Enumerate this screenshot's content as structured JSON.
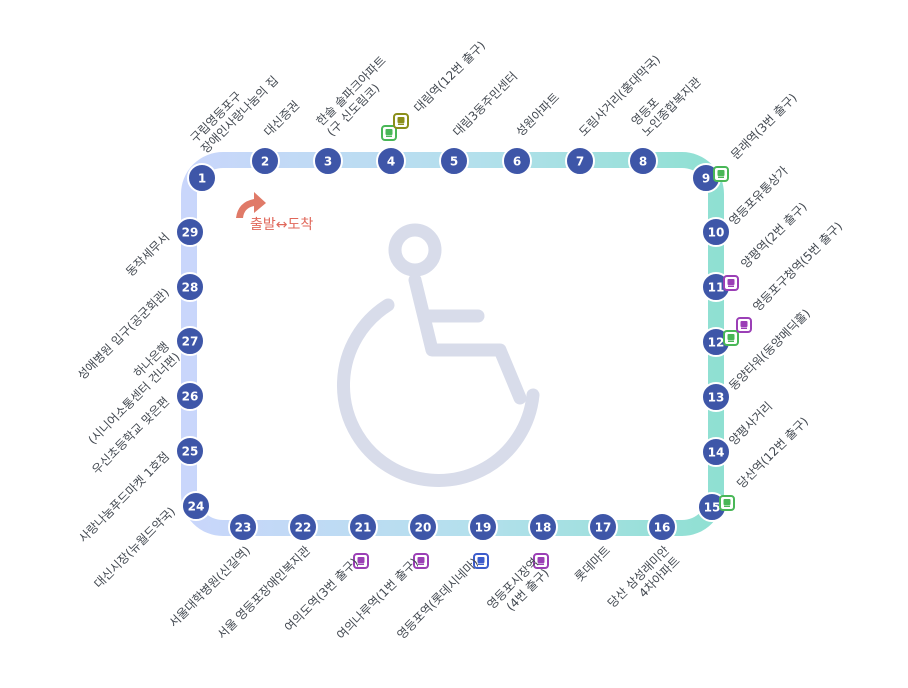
{
  "route_colors": {
    "start": "#c9d6fb",
    "mid": "#b3e0ec",
    "end": "#8fe0d2",
    "stop": "#3e56a8",
    "icon": "#d8dcea",
    "accent": "#e07a68"
  },
  "start_label": "출발↔도착",
  "center_icon": "wheelchair-icon",
  "stops": [
    {
      "num": "1",
      "lines": [
        "구립영등포구",
        "장애인사랑나눔의 집"
      ],
      "badges": []
    },
    {
      "num": "2",
      "lines": [
        "대신증권"
      ],
      "badges": []
    },
    {
      "num": "3",
      "lines": [
        "한솔 솔파크아파트",
        "(구 신도림코)"
      ],
      "badges": []
    },
    {
      "num": "4",
      "lines": [
        "대림역(12번 출구)"
      ],
      "badges": [
        {
          "color": "#49b757",
          "icon": "subway-line2-icon"
        },
        {
          "color": "#8b8f1a",
          "icon": "subway-line7-icon"
        }
      ]
    },
    {
      "num": "5",
      "lines": [
        "대림3동주민센터"
      ],
      "badges": []
    },
    {
      "num": "6",
      "lines": [
        "성원아파트"
      ],
      "badges": []
    },
    {
      "num": "7",
      "lines": [
        "도림사거리(홍대막국)"
      ],
      "badges": []
    },
    {
      "num": "8",
      "lines": [
        "영등포",
        "노인종합복지관"
      ],
      "badges": []
    },
    {
      "num": "9",
      "lines": [
        "문래역(3번 출구)"
      ],
      "badges": [
        {
          "color": "#49b757",
          "icon": "subway-line2-icon"
        }
      ]
    },
    {
      "num": "10",
      "lines": [
        "영등포유통상가"
      ],
      "badges": []
    },
    {
      "num": "11",
      "lines": [
        "양평역(2번 출구)"
      ],
      "badges": [
        {
          "color": "#9b3fb6",
          "icon": "subway-line5-icon"
        }
      ]
    },
    {
      "num": "12",
      "lines": [
        "영등포구청역(5번 출구)"
      ],
      "badges": [
        {
          "color": "#49b757",
          "icon": "subway-line2-icon"
        },
        {
          "color": "#9b3fb6",
          "icon": "subway-line5-icon"
        }
      ]
    },
    {
      "num": "13",
      "lines": [
        "동양타워(동양메딕홀)"
      ],
      "badges": []
    },
    {
      "num": "14",
      "lines": [
        "양평사거리"
      ],
      "badges": []
    },
    {
      "num": "15",
      "lines": [
        "당산역(12번 출구)"
      ],
      "badges": [
        {
          "color": "#49b757",
          "icon": "subway-line2-icon"
        }
      ]
    },
    {
      "num": "16",
      "lines": [
        "당산 삼성래미안",
        "4차아파트"
      ],
      "badges": []
    },
    {
      "num": "17",
      "lines": [
        "롯데마트"
      ],
      "badges": []
    },
    {
      "num": "18",
      "lines": [
        "영등포시장역",
        "(4번 출구)"
      ],
      "badges": [
        {
          "color": "#9b3fb6",
          "icon": "subway-line5-icon"
        }
      ]
    },
    {
      "num": "19",
      "lines": [
        "영등포역(롯데시네마)"
      ],
      "badges": [
        {
          "color": "#3d5ccc",
          "icon": "subway-line1-icon"
        }
      ]
    },
    {
      "num": "20",
      "lines": [
        "여의나루역(1번 출구)"
      ],
      "badges": [
        {
          "color": "#9b3fb6",
          "icon": "subway-line5-icon"
        }
      ]
    },
    {
      "num": "21",
      "lines": [
        "여의도역(3번 출구)"
      ],
      "badges": [
        {
          "color": "#9b3fb6",
          "icon": "subway-line5-icon"
        }
      ]
    },
    {
      "num": "22",
      "lines": [
        "서울 영등포장애인복지관"
      ],
      "badges": []
    },
    {
      "num": "23",
      "lines": [
        "서울대학병원(신길역)"
      ],
      "badges": []
    },
    {
      "num": "24",
      "lines": [
        "대신시장(뉴월드약국)"
      ],
      "badges": []
    },
    {
      "num": "25",
      "lines": [
        "사랑나눔푸드마켓 1호점"
      ],
      "badges": []
    },
    {
      "num": "26",
      "lines": [
        "우신초등학교 맞은편"
      ],
      "badges": []
    },
    {
      "num": "27",
      "lines": [
        "하나은행",
        "(시니어소통센터 건너편)"
      ],
      "badges": []
    },
    {
      "num": "28",
      "lines": [
        "성애병원 입구(공군회관)"
      ],
      "badges": []
    },
    {
      "num": "29",
      "lines": [
        "동작세무서"
      ],
      "badges": []
    }
  ]
}
